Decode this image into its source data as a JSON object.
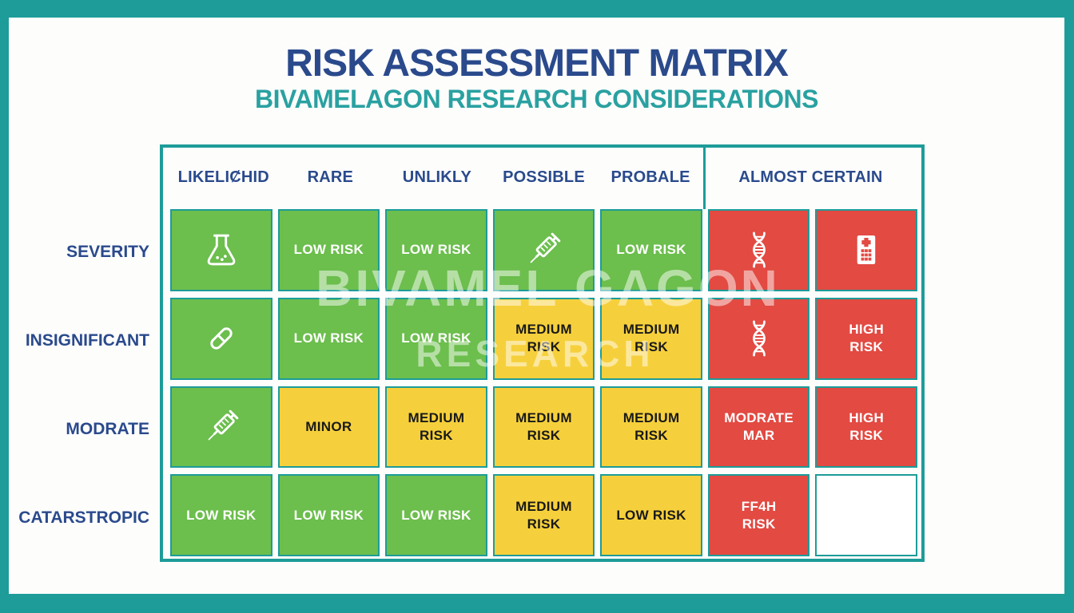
{
  "title": "RISK ASSESSMENT MATRIX",
  "subtitle": "BIVAMELAGON RESEARCH CONSIDERATIONS",
  "watermark": {
    "line1": "BIVAMEL GAGON",
    "line2": "RESEARCH"
  },
  "colors": {
    "frame_teal": "#1d9c99",
    "title_blue": "#2a4a8c",
    "subtitle_teal": "#2aa1a1",
    "low_risk_green": "#6cbe4d",
    "medium_risk_yellow": "#f6d03c",
    "high_risk_red": "#e24a42"
  },
  "matrix": {
    "column_headers": [
      "LIKELIȻHID",
      "RARE",
      "UNLIKLY",
      "POSSIBLE",
      "PROBALE",
      "ALMOST CERTAIN"
    ],
    "row_headers": [
      "SEVERITY",
      "INSIGNIFICANT",
      "MODRATE",
      "CATARSTROPIC"
    ],
    "cells": [
      [
        {
          "type": "icon",
          "icon": "flask-icon",
          "color": "green"
        },
        {
          "type": "text",
          "label": "LOW RISK",
          "color": "green"
        },
        {
          "type": "text",
          "label": "LOW RISK",
          "color": "green"
        },
        {
          "type": "icon",
          "icon": "syringe-icon",
          "color": "green"
        },
        {
          "type": "text",
          "label": "LOW RISK",
          "color": "green"
        },
        {
          "type": "icon",
          "icon": "dna-icon",
          "color": "red"
        },
        {
          "type": "icon",
          "icon": "hospital-icon",
          "color": "red"
        }
      ],
      [
        {
          "type": "icon",
          "icon": "capsule-icon",
          "color": "green"
        },
        {
          "type": "text",
          "label": "LOW RISK",
          "color": "green"
        },
        {
          "type": "text",
          "label": "LOW RISK",
          "color": "green"
        },
        {
          "type": "text",
          "label": "MEDIUM\nRISK",
          "color": "yellow"
        },
        {
          "type": "text",
          "label": "MEDIUM\nRISK",
          "color": "yellow"
        },
        {
          "type": "icon",
          "icon": "dna-icon",
          "color": "red"
        },
        {
          "type": "text",
          "label": "HIGH\nRISK",
          "color": "red"
        }
      ],
      [
        {
          "type": "icon",
          "icon": "syringe-icon",
          "color": "green"
        },
        {
          "type": "text",
          "label": "MINOR",
          "color": "yellow"
        },
        {
          "type": "text",
          "label": "MEDIUM\nRISK",
          "color": "yellow"
        },
        {
          "type": "text",
          "label": "MEDIUM\nRISK",
          "color": "yellow"
        },
        {
          "type": "text",
          "label": "MEDIUM\nRISK",
          "color": "yellow"
        },
        {
          "type": "text",
          "label": "MODRATE\nMAR",
          "color": "red"
        },
        {
          "type": "text",
          "label": "HIGH\nRISK",
          "color": "red"
        }
      ],
      [
        {
          "type": "text",
          "label": "LOW RISK",
          "color": "green"
        },
        {
          "type": "text",
          "label": "LOW RISK",
          "color": "green"
        },
        {
          "type": "text",
          "label": "LOW RISK",
          "color": "green"
        },
        {
          "type": "text",
          "label": "MEDIUM\nRISK",
          "color": "yellow"
        },
        {
          "type": "text",
          "label": "LOW RISK",
          "color": "yellow"
        },
        {
          "type": "text",
          "label": "FF4H\nRISK",
          "color": "red"
        },
        {
          "type": "empty",
          "color": "white"
        }
      ]
    ]
  }
}
